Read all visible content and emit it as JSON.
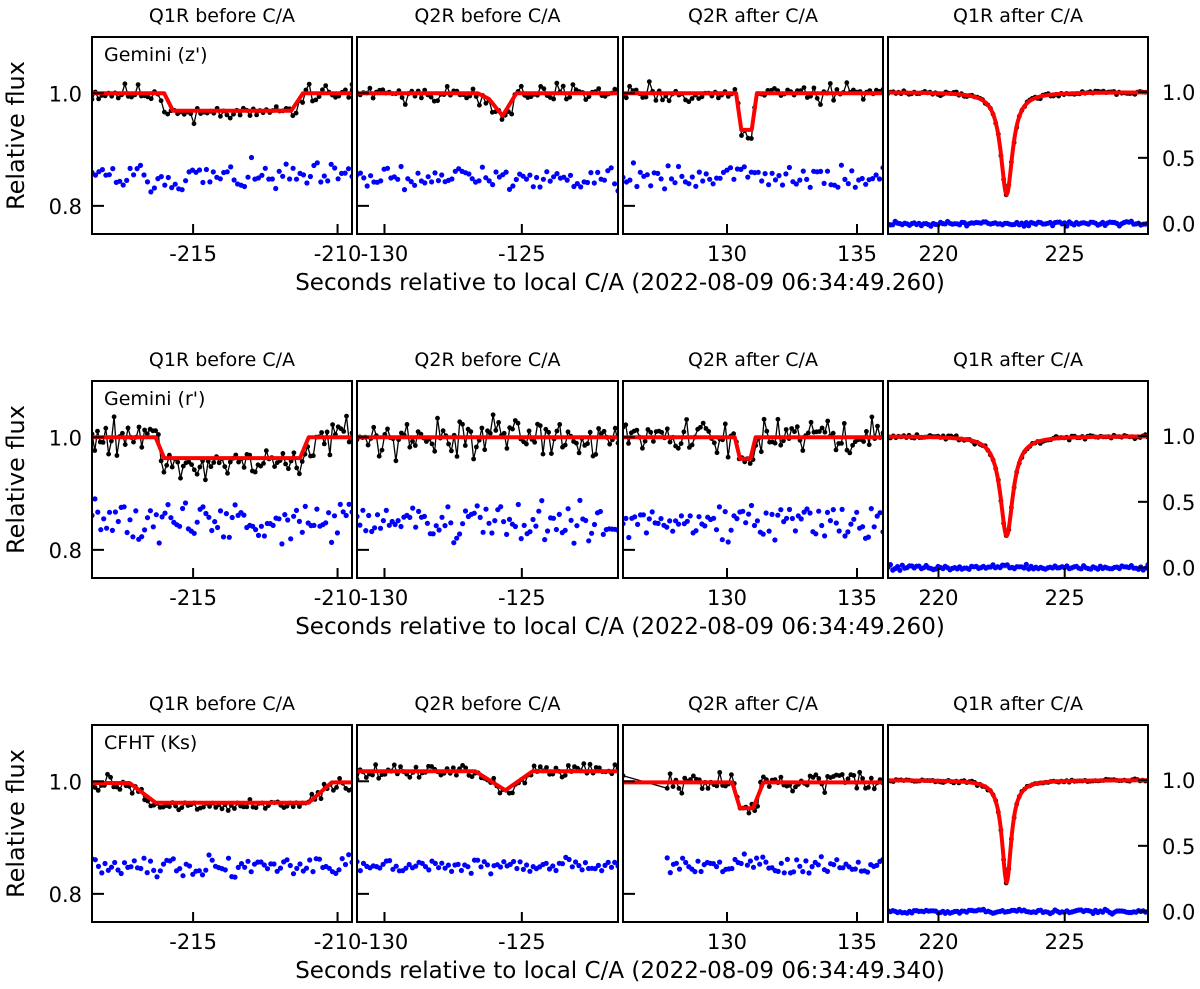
{
  "chart_data": [
    {
      "type": "line",
      "instrument_label": "Gemini (z')",
      "xlabel": "Seconds relative to local C/A (2022-08-09 06:34:49.260)",
      "ylabel": "Relative flux",
      "panels": [
        {
          "title": "Q1R before C/A",
          "xlim": [
            -218.5,
            -209.5
          ],
          "ylim": [
            0.75,
            1.1
          ],
          "xticks": [
            -215,
            -210
          ],
          "yticks": [
            0.8,
            1.0
          ],
          "ytick_labels": [
            "0.8",
            "1.0"
          ],
          "model": {
            "x": [
              -218.5,
              -216.0,
              -215.7,
              -211.6,
              -211.2,
              -209.5
            ],
            "y": [
              1.0,
              1.0,
              0.969,
              0.969,
              1.0,
              1.0
            ]
          },
          "data": {
            "x0": -218.5,
            "x1": -209.5,
            "n": 80,
            "noise": 0.012,
            "dips": [
              [
                -216.0,
                -211.4,
                0.969
              ]
            ]
          },
          "residual": {
            "level": 0.85,
            "noise": 0.018
          }
        },
        {
          "title": "Q2R before C/A",
          "xlim": [
            -131.0,
            -121.5
          ],
          "ylim": [
            0.75,
            1.1
          ],
          "xticks": [
            -130,
            -125
          ],
          "yticks": [
            0.8,
            1.0
          ],
          "ytick_labels": [],
          "model": {
            "x": [
              -131.0,
              -126.6,
              -126.2,
              -125.7,
              -125.2,
              -121.5
            ],
            "y": [
              1.0,
              1.0,
              0.99,
              0.96,
              1.0,
              1.0
            ]
          },
          "data": {
            "x0": -131.0,
            "x1": -121.5,
            "n": 82,
            "noise": 0.012,
            "dips": [
              [
                -126.1,
                -125.3,
                0.965
              ]
            ]
          },
          "residual": {
            "level": 0.85,
            "noise": 0.016
          }
        },
        {
          "title": "Q2R after C/A",
          "xlim": [
            126.0,
            136.0
          ],
          "ylim": [
            0.75,
            1.1
          ],
          "xticks": [
            130,
            135
          ],
          "yticks": [
            0.8,
            1.0
          ],
          "ytick_labels": [],
          "model": {
            "x": [
              126.0,
              130.35,
              130.55,
              130.95,
              131.15,
              136.0
            ],
            "y": [
              1.0,
              1.0,
              0.935,
              0.935,
              1.0,
              1.0
            ]
          },
          "data": {
            "x0": 126.0,
            "x1": 136.0,
            "n": 80,
            "noise": 0.012,
            "dips": [
              [
                130.5,
                131.0,
                0.94
              ]
            ]
          },
          "residual": {
            "level": 0.85,
            "noise": 0.016
          }
        },
        {
          "title": "Q1R after C/A",
          "xlim": [
            218.0,
            228.3
          ],
          "ylim": [
            -0.08,
            1.42
          ],
          "xticks": [
            220,
            225
          ],
          "yticks": [
            0.0,
            0.5,
            1.0
          ],
          "ytick_labels": [
            "0.0",
            "0.5",
            "1.0"
          ],
          "model": {
            "center": 222.7,
            "depth": 0.78,
            "width": 0.28
          },
          "data": {
            "x0": 218.0,
            "x1": 228.3,
            "n": 100,
            "noise": 0.01
          },
          "residual": {
            "level": 0.0,
            "noise": 0.012
          }
        }
      ]
    },
    {
      "type": "line",
      "instrument_label": "Gemini (r')",
      "xlabel": "Seconds relative to local C/A (2022-08-09 06:34:49.260)",
      "ylabel": "Relative flux",
      "panels": [
        {
          "title": "Q1R before C/A",
          "xlim": [
            -218.5,
            -209.5
          ],
          "ylim": [
            0.75,
            1.1
          ],
          "xticks": [
            -215,
            -210
          ],
          "yticks": [
            0.8,
            1.0
          ],
          "ytick_labels": [
            "0.8",
            "1.0"
          ],
          "model": {
            "x": [
              -218.5,
              -216.3,
              -216.0,
              -211.3,
              -211.0,
              -209.5
            ],
            "y": [
              1.0,
              1.0,
              0.963,
              0.963,
              1.0,
              1.0
            ]
          },
          "data": {
            "x0": -218.5,
            "x1": -209.5,
            "n": 95,
            "noise": 0.025,
            "dips": [
              [
                -216.2,
                -211.1,
                0.963
              ]
            ]
          },
          "residual": {
            "level": 0.85,
            "noise": 0.025
          }
        },
        {
          "title": "Q2R before C/A",
          "xlim": [
            -131.0,
            -121.5
          ],
          "ylim": [
            0.75,
            1.1
          ],
          "xticks": [
            -130,
            -125
          ],
          "yticks": [
            0.8,
            1.0
          ],
          "ytick_labels": [],
          "model": {
            "x": [
              -131.0,
              -121.5
            ],
            "y": [
              1.0,
              1.0
            ]
          },
          "data": {
            "x0": -131.0,
            "x1": -121.5,
            "n": 95,
            "noise": 0.022,
            "dips": []
          },
          "residual": {
            "level": 0.85,
            "noise": 0.022
          }
        },
        {
          "title": "Q2R after C/A",
          "xlim": [
            126.0,
            136.0
          ],
          "ylim": [
            0.75,
            1.1
          ],
          "xticks": [
            130,
            135
          ],
          "yticks": [
            0.8,
            1.0
          ],
          "ytick_labels": [],
          "model": {
            "x": [
              126.0,
              130.3,
              130.5,
              130.9,
              131.1,
              136.0
            ],
            "y": [
              1.0,
              1.0,
              0.962,
              0.962,
              1.0,
              1.0
            ]
          },
          "data": {
            "x0": 126.0,
            "x1": 136.0,
            "n": 95,
            "noise": 0.022,
            "dips": [
              [
                130.4,
                131.0,
                0.962
              ]
            ]
          },
          "residual": {
            "level": 0.85,
            "noise": 0.022
          }
        },
        {
          "title": "Q1R after C/A",
          "xlim": [
            218.0,
            228.3
          ],
          "ylim": [
            -0.08,
            1.42
          ],
          "xticks": [
            220,
            225
          ],
          "yticks": [
            0.0,
            0.5,
            1.0
          ],
          "ytick_labels": [
            "0.0",
            "0.5",
            "1.0"
          ],
          "model": {
            "center": 222.7,
            "depth": 0.76,
            "width": 0.3
          },
          "data": {
            "x0": 218.0,
            "x1": 228.3,
            "n": 100,
            "noise": 0.012
          },
          "residual": {
            "level": 0.0,
            "noise": 0.014
          }
        }
      ]
    },
    {
      "type": "line",
      "instrument_label": "CFHT (Ks)",
      "xlabel": "Seconds relative to local C/A (2022-08-09 06:34:49.340)",
      "ylabel": "Relative flux",
      "panels": [
        {
          "title": "Q1R before C/A",
          "xlim": [
            -218.5,
            -209.5
          ],
          "ylim": [
            0.75,
            1.1
          ],
          "xticks": [
            -215,
            -210
          ],
          "yticks": [
            0.8,
            1.0
          ],
          "ytick_labels": [
            "0.8",
            "1.0"
          ],
          "model": {
            "x": [
              -218.5,
              -217.2,
              -216.3,
              -211.0,
              -210.2,
              -209.5
            ],
            "y": [
              0.997,
              0.997,
              0.962,
              0.962,
              0.998,
              0.998
            ]
          },
          "data": {
            "x0": -218.5,
            "x1": -209.5,
            "n": 85,
            "noise": 0.012,
            "dips": [
              [
                -216.5,
                -211.0,
                0.962
              ]
            ]
          },
          "residual": {
            "level": 0.85,
            "noise": 0.014
          }
        },
        {
          "title": "Q2R before C/A",
          "xlim": [
            -131.0,
            -121.5
          ],
          "ylim": [
            0.75,
            1.1
          ],
          "xticks": [
            -130,
            -125
          ],
          "yticks": [
            0.8,
            1.0
          ],
          "ytick_labels": [],
          "model": {
            "x": [
              -131.0,
              -126.7,
              -125.6,
              -124.6,
              -121.5
            ],
            "y": [
              1.018,
              1.018,
              0.984,
              1.018,
              1.018
            ]
          },
          "data": {
            "x0": -131.0,
            "x1": -121.5,
            "n": 85,
            "noise": 0.008,
            "dips": [
              [
                -125.8,
                -125.3,
                0.984
              ]
            ]
          },
          "residual": {
            "level": 0.85,
            "noise": 0.008
          }
        },
        {
          "title": "Q2R after C/A",
          "xlim": [
            126.0,
            136.0
          ],
          "ylim": [
            0.75,
            1.1
          ],
          "xticks": [
            130,
            135
          ],
          "yticks": [
            0.8,
            1.0
          ],
          "ytick_labels": [],
          "model": {
            "x": [
              126.0,
              130.2,
              130.5,
              131.0,
              131.4,
              136.0
            ],
            "y": [
              0.998,
              0.998,
              0.952,
              0.952,
              0.998,
              0.998
            ]
          },
          "data": {
            "x0": 127.7,
            "x1": 136.0,
            "n": 75,
            "noise": 0.012,
            "dips": [
              [
                130.4,
                131.1,
                0.952
              ]
            ]
          },
          "residual": {
            "level": 0.85,
            "noise": 0.012,
            "x0": 127.7
          }
        },
        {
          "title": "Q1R after C/A",
          "xlim": [
            218.0,
            228.3
          ],
          "ylim": [
            -0.08,
            1.42
          ],
          "xticks": [
            220,
            225
          ],
          "yticks": [
            0.0,
            0.5,
            1.0
          ],
          "ytick_labels": [
            "0.0",
            "0.5",
            "1.0"
          ],
          "model": {
            "center": 222.7,
            "depth": 0.78,
            "width": 0.22
          },
          "data": {
            "x0": 218.0,
            "x1": 228.3,
            "n": 100,
            "noise": 0.008
          },
          "residual": {
            "level": 0.0,
            "noise": 0.01
          }
        }
      ]
    }
  ],
  "colors": {
    "data": "#000000",
    "model": "#ff0000",
    "residual": "#0000ff",
    "zero_line": "#aaaaaa"
  }
}
